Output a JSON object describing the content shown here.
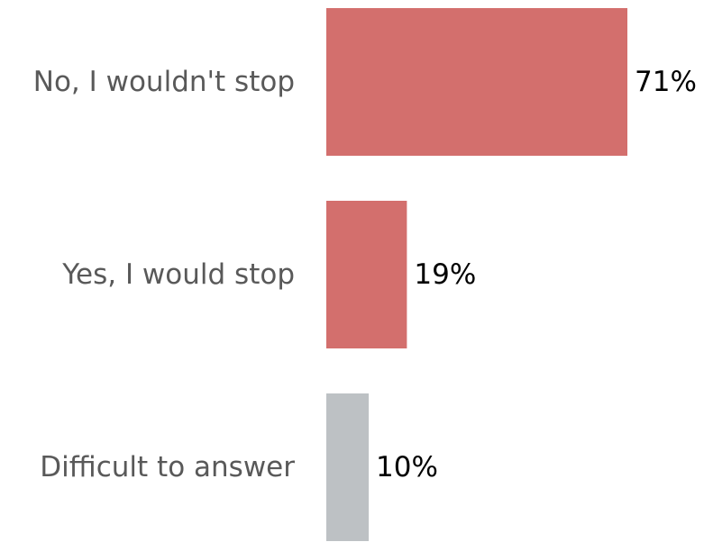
{
  "chart_data": {
    "type": "bar",
    "orientation": "horizontal",
    "title": "",
    "xlabel": "",
    "ylabel": "",
    "categories": [
      "No, I wouldn't stop",
      "Yes, I would stop",
      "Difficult to answer"
    ],
    "values": [
      71,
      19,
      10
    ],
    "value_labels": [
      "71%",
      "19%",
      "10%"
    ],
    "unit": "%",
    "xlim": [
      0,
      71
    ],
    "grid": false,
    "legend": "none",
    "colors": [
      "#d36f6d",
      "#d36f6d",
      "#bdc1c4"
    ]
  }
}
